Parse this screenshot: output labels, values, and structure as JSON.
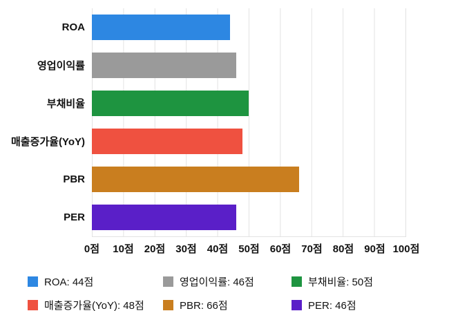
{
  "chart_data": {
    "type": "bar",
    "orientation": "horizontal",
    "title": "",
    "xlabel": "",
    "ylabel": "",
    "xlim": [
      0,
      100
    ],
    "grid": true,
    "legend_position": "bottom",
    "unit": "점",
    "categories": [
      "ROA",
      "영업이익률",
      "부채비율",
      "매출증가율(YoY)",
      "PBR",
      "PER"
    ],
    "values": [
      44,
      46,
      50,
      48,
      66,
      46
    ],
    "colors": [
      "#2d87e2",
      "#9a9a9a",
      "#1e9440",
      "#ef5140",
      "#c97e1f",
      "#5a1fc8"
    ],
    "x_ticks": [
      "0점",
      "10점",
      "20점",
      "30점",
      "40점",
      "50점",
      "60점",
      "70점",
      "80점",
      "90점",
      "100점"
    ],
    "legend": [
      {
        "label": "ROA: 44점",
        "color": "#2d87e2"
      },
      {
        "label": "영업이익률: 46점",
        "color": "#9a9a9a"
      },
      {
        "label": "부채비율: 50점",
        "color": "#1e9440"
      },
      {
        "label": "매출증가율(YoY): 48점",
        "color": "#ef5140"
      },
      {
        "label": "PBR: 66점",
        "color": "#c97e1f"
      },
      {
        "label": "PER: 46점",
        "color": "#5a1fc8"
      }
    ]
  }
}
